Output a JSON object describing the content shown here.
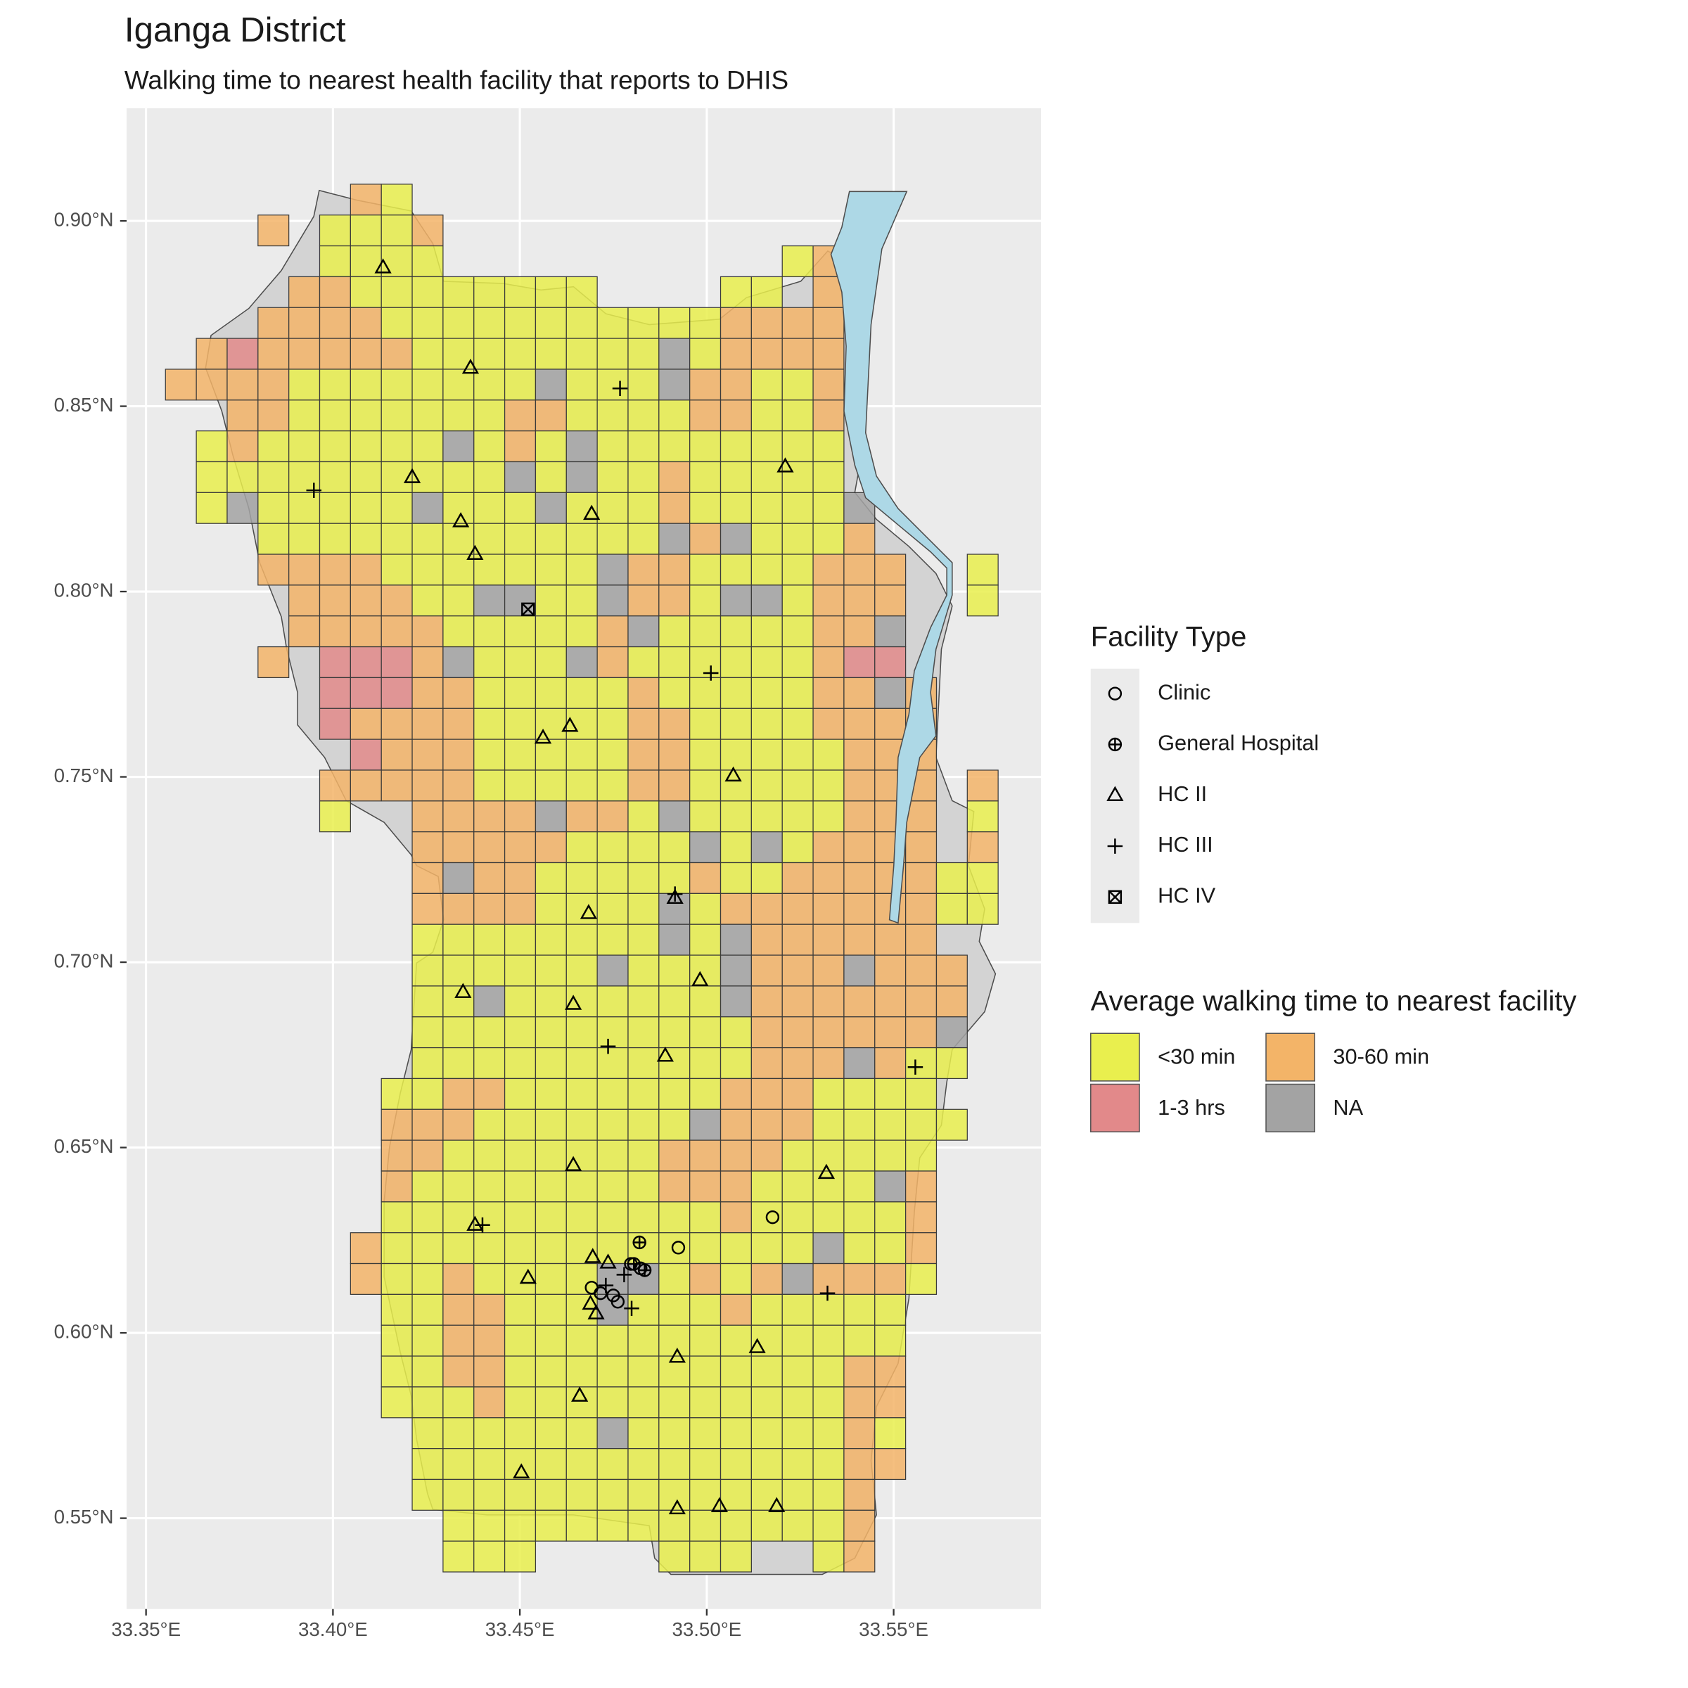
{
  "chart_data": {
    "type": "map",
    "title": "Iganga District",
    "subtitle": "Walking time to nearest health facility that reports to DHIS",
    "xlim": [
      33.3448,
      33.5894
    ],
    "ylim": [
      0.5255,
      0.9304
    ],
    "xticks": [
      {
        "value": 33.35,
        "label": "33.35°E"
      },
      {
        "value": 33.4,
        "label": "33.40°E"
      },
      {
        "value": 33.45,
        "label": "33.45°E"
      },
      {
        "value": 33.5,
        "label": "33.50°E"
      },
      {
        "value": 33.55,
        "label": "33.55°E"
      }
    ],
    "yticks": [
      {
        "value": 0.55,
        "label": "0.55°N"
      },
      {
        "value": 0.6,
        "label": "0.60°N"
      },
      {
        "value": 0.65,
        "label": "0.65°N"
      },
      {
        "value": 0.7,
        "label": "0.70°N"
      },
      {
        "value": 0.75,
        "label": "0.75°N"
      },
      {
        "value": 0.8,
        "label": "0.80°N"
      },
      {
        "value": 0.85,
        "label": "0.85°N"
      },
      {
        "value": 0.9,
        "label": "0.90°N"
      }
    ],
    "grid": true,
    "facility_legend_title": "Facility Type",
    "facilities": [
      {
        "name": "Clinic",
        "shape": "circle",
        "lon": [
          33.5176,
          33.4924,
          33.4692,
          33.4716,
          33.475,
          33.4762,
          33.4797,
          33.4823
        ],
        "lat": [
          0.6312,
          0.623,
          0.6122,
          0.6107,
          0.6101,
          0.6084,
          0.6186,
          0.6174
        ]
      },
      {
        "name": "General Hospital",
        "shape": "circle-plus",
        "lon": [
          33.482,
          33.4805,
          33.4834
        ],
        "lat": [
          0.6244,
          0.6186,
          0.6169
        ]
      },
      {
        "name": "HC II",
        "shape": "triangle",
        "lon": [
          33.4134,
          33.4368,
          33.4212,
          33.4342,
          33.438,
          33.4692,
          33.521,
          33.4634,
          33.4562,
          33.5071,
          33.4684,
          33.4915,
          33.4348,
          33.4643,
          33.4982,
          33.4889,
          33.4643,
          33.532,
          33.438,
          33.4522,
          33.4695,
          33.4736,
          33.4689,
          33.4704,
          33.4921,
          33.5135,
          33.466,
          33.4504,
          33.4921,
          33.5034,
          33.5187
        ],
        "lat": [
          0.8874,
          0.8603,
          0.8308,
          0.8189,
          0.8101,
          0.8209,
          0.8337,
          0.7637,
          0.7605,
          0.7503,
          0.7132,
          0.7173,
          0.6919,
          0.6887,
          0.6951,
          0.6747,
          0.6452,
          0.6431,
          0.6291,
          0.6148,
          0.6204,
          0.6189,
          0.6078,
          0.6052,
          0.5935,
          0.5961,
          0.583,
          0.5623,
          0.5526,
          0.5532,
          0.5532
        ]
      },
      {
        "name": "HC III",
        "shape": "plus",
        "lon": [
          33.4768,
          33.3949,
          33.5011,
          33.4915,
          33.4736,
          33.5558,
          33.44,
          33.5323,
          33.4799,
          33.4779,
          33.473
        ],
        "lat": [
          0.8548,
          0.8273,
          0.778,
          0.7184,
          0.6773,
          0.6717,
          0.6291,
          0.6107,
          0.6066,
          0.6157,
          0.6128
        ]
      },
      {
        "name": "HC IV",
        "shape": "square-x",
        "lon": [
          33.4522
        ],
        "lat": [
          0.7952
        ]
      }
    ],
    "walking_legend_title": "Average walking time to nearest facility",
    "classes": [
      {
        "name": "<30 min",
        "color": "#e9ef4e"
      },
      {
        "name": "30-60 min",
        "color": "#f3b468"
      },
      {
        "name": "1-3 hrs",
        "color": "#e2898a"
      },
      {
        "name": "NA",
        "color": "#a3a3a3"
      }
    ],
    "grid_origin": {
      "lon": 33.3552,
      "lat": 0.9099
    },
    "cell_size": {
      "lon": 0.00825,
      "lat": 0.00832
    },
    "cells": [
      [
        null,
        null,
        null,
        null,
        null,
        null,
        1,
        0,
        null,
        null,
        null,
        null,
        null,
        null,
        null,
        null,
        null,
        null,
        null,
        null,
        null,
        null,
        null,
        null,
        null,
        null,
        null
      ],
      [
        null,
        null,
        null,
        1,
        null,
        0,
        0,
        0,
        1,
        null,
        null,
        null,
        null,
        null,
        null,
        null,
        null,
        null,
        null,
        null,
        null,
        null,
        null,
        null,
        null,
        null,
        null
      ],
      [
        null,
        null,
        null,
        null,
        null,
        0,
        0,
        0,
        0,
        null,
        null,
        null,
        null,
        null,
        null,
        null,
        null,
        null,
        null,
        null,
        0,
        1,
        null,
        null,
        null,
        null,
        null
      ],
      [
        null,
        null,
        null,
        null,
        1,
        1,
        0,
        0,
        0,
        0,
        0,
        0,
        0,
        0,
        null,
        null,
        null,
        null,
        0,
        0,
        null,
        1,
        null,
        null,
        null,
        null,
        null
      ],
      [
        null,
        null,
        null,
        1,
        1,
        1,
        1,
        0,
        0,
        0,
        0,
        0,
        0,
        0,
        0,
        0,
        0,
        0,
        1,
        1,
        1,
        1,
        null,
        null,
        null,
        null,
        null
      ],
      [
        null,
        1,
        2,
        1,
        1,
        1,
        1,
        1,
        0,
        0,
        0,
        0,
        0,
        0,
        0,
        0,
        3,
        0,
        1,
        1,
        1,
        1,
        null,
        null,
        null,
        null,
        null
      ],
      [
        1,
        1,
        1,
        1,
        0,
        0,
        0,
        0,
        0,
        0,
        0,
        0,
        3,
        0,
        0,
        0,
        3,
        1,
        1,
        0,
        0,
        1,
        null,
        null,
        null,
        null,
        null
      ],
      [
        null,
        null,
        1,
        1,
        0,
        0,
        0,
        0,
        0,
        0,
        0,
        1,
        1,
        0,
        0,
        0,
        0,
        1,
        1,
        0,
        0,
        1,
        null,
        null,
        null,
        null,
        null
      ],
      [
        null,
        0,
        1,
        0,
        0,
        0,
        0,
        0,
        0,
        3,
        0,
        1,
        0,
        3,
        0,
        0,
        0,
        0,
        0,
        0,
        0,
        0,
        null,
        null,
        null,
        null,
        null
      ],
      [
        null,
        0,
        0,
        0,
        0,
        0,
        0,
        0,
        0,
        0,
        0,
        3,
        0,
        3,
        0,
        0,
        1,
        0,
        0,
        0,
        0,
        0,
        null,
        null,
        null,
        null,
        null
      ],
      [
        null,
        0,
        3,
        0,
        0,
        0,
        0,
        0,
        3,
        0,
        0,
        0,
        3,
        0,
        0,
        0,
        1,
        0,
        0,
        0,
        0,
        0,
        3,
        null,
        null,
        null,
        null
      ],
      [
        null,
        null,
        null,
        0,
        0,
        0,
        0,
        0,
        0,
        0,
        0,
        0,
        0,
        0,
        0,
        0,
        3,
        1,
        3,
        0,
        0,
        0,
        1,
        null,
        null,
        null,
        null
      ],
      [
        null,
        null,
        null,
        1,
        1,
        1,
        1,
        0,
        0,
        0,
        0,
        0,
        0,
        0,
        3,
        1,
        1,
        0,
        0,
        0,
        0,
        1,
        1,
        1,
        null,
        null,
        0
      ],
      [
        null,
        null,
        null,
        null,
        1,
        1,
        1,
        1,
        0,
        0,
        3,
        3,
        0,
        0,
        3,
        1,
        1,
        0,
        3,
        3,
        0,
        1,
        1,
        1,
        null,
        null,
        0
      ],
      [
        null,
        null,
        null,
        null,
        1,
        1,
        1,
        1,
        1,
        0,
        0,
        0,
        0,
        0,
        1,
        3,
        0,
        0,
        0,
        0,
        0,
        1,
        1,
        3,
        null,
        null,
        null
      ],
      [
        null,
        null,
        null,
        1,
        null,
        2,
        2,
        2,
        1,
        3,
        0,
        0,
        0,
        3,
        1,
        0,
        0,
        0,
        0,
        0,
        0,
        1,
        2,
        2,
        null,
        null,
        null
      ],
      [
        null,
        null,
        null,
        null,
        null,
        2,
        2,
        2,
        1,
        1,
        0,
        0,
        0,
        0,
        0,
        1,
        0,
        0,
        0,
        0,
        0,
        1,
        1,
        3,
        1,
        null,
        null
      ],
      [
        null,
        null,
        null,
        null,
        null,
        2,
        1,
        1,
        1,
        1,
        0,
        0,
        0,
        0,
        0,
        1,
        1,
        0,
        0,
        0,
        0,
        1,
        1,
        1,
        1,
        null,
        null
      ],
      [
        null,
        null,
        null,
        null,
        null,
        null,
        2,
        1,
        1,
        1,
        0,
        0,
        0,
        0,
        0,
        1,
        1,
        0,
        0,
        0,
        0,
        0,
        1,
        1,
        1,
        null,
        null
      ],
      [
        null,
        null,
        null,
        null,
        null,
        1,
        1,
        1,
        1,
        1,
        0,
        0,
        0,
        0,
        0,
        1,
        1,
        0,
        0,
        0,
        0,
        0,
        1,
        1,
        1,
        null,
        1
      ],
      [
        null,
        null,
        null,
        null,
        null,
        0,
        null,
        null,
        1,
        1,
        1,
        1,
        3,
        1,
        1,
        0,
        3,
        0,
        0,
        0,
        0,
        0,
        1,
        1,
        1,
        null,
        0
      ],
      [
        null,
        null,
        null,
        null,
        null,
        null,
        null,
        null,
        1,
        1,
        1,
        1,
        1,
        0,
        0,
        0,
        0,
        3,
        0,
        3,
        0,
        1,
        1,
        1,
        1,
        null,
        1
      ],
      [
        null,
        null,
        null,
        null,
        null,
        null,
        null,
        null,
        1,
        3,
        1,
        1,
        0,
        0,
        0,
        0,
        0,
        1,
        0,
        0,
        1,
        1,
        1,
        1,
        1,
        0,
        0
      ],
      [
        null,
        null,
        null,
        null,
        null,
        null,
        null,
        null,
        1,
        1,
        1,
        1,
        0,
        0,
        0,
        0,
        3,
        0,
        1,
        1,
        1,
        1,
        1,
        1,
        1,
        0,
        0
      ],
      [
        null,
        null,
        null,
        null,
        null,
        null,
        null,
        null,
        0,
        0,
        0,
        0,
        0,
        0,
        0,
        0,
        3,
        0,
        3,
        1,
        1,
        1,
        1,
        1,
        1,
        null,
        null
      ],
      [
        null,
        null,
        null,
        null,
        null,
        null,
        null,
        null,
        0,
        0,
        0,
        0,
        0,
        0,
        3,
        0,
        0,
        0,
        3,
        1,
        1,
        1,
        3,
        1,
        1,
        1,
        null
      ],
      [
        null,
        null,
        null,
        null,
        null,
        null,
        null,
        null,
        0,
        0,
        3,
        0,
        0,
        0,
        0,
        0,
        0,
        0,
        3,
        1,
        1,
        1,
        1,
        1,
        1,
        1,
        null
      ],
      [
        null,
        null,
        null,
        null,
        null,
        null,
        null,
        null,
        0,
        0,
        0,
        0,
        0,
        0,
        0,
        0,
        0,
        0,
        0,
        1,
        1,
        1,
        1,
        1,
        1,
        3,
        null
      ],
      [
        null,
        null,
        null,
        null,
        null,
        null,
        null,
        null,
        0,
        0,
        0,
        0,
        0,
        0,
        0,
        0,
        0,
        0,
        0,
        1,
        1,
        1,
        3,
        1,
        0,
        0,
        null
      ],
      [
        null,
        null,
        null,
        null,
        null,
        null,
        null,
        0,
        0,
        1,
        1,
        0,
        0,
        0,
        0,
        0,
        0,
        0,
        1,
        1,
        1,
        0,
        0,
        0,
        0,
        null,
        null
      ],
      [
        null,
        null,
        null,
        null,
        null,
        null,
        null,
        1,
        1,
        1,
        0,
        0,
        0,
        0,
        0,
        0,
        0,
        3,
        1,
        1,
        1,
        0,
        0,
        0,
        0,
        0,
        null
      ],
      [
        null,
        null,
        null,
        null,
        null,
        null,
        null,
        1,
        1,
        0,
        0,
        0,
        0,
        0,
        0,
        0,
        1,
        1,
        1,
        1,
        0,
        0,
        0,
        0,
        0,
        null,
        null
      ],
      [
        null,
        null,
        null,
        null,
        null,
        null,
        null,
        1,
        0,
        0,
        0,
        0,
        0,
        0,
        0,
        0,
        1,
        1,
        1,
        0,
        0,
        0,
        0,
        3,
        1,
        null,
        null
      ],
      [
        null,
        null,
        null,
        null,
        null,
        null,
        null,
        0,
        0,
        0,
        0,
        0,
        0,
        0,
        0,
        0,
        0,
        0,
        1,
        0,
        0,
        0,
        0,
        0,
        1,
        null,
        null
      ],
      [
        null,
        null,
        null,
        null,
        null,
        null,
        1,
        0,
        0,
        0,
        0,
        0,
        0,
        0,
        0,
        0,
        0,
        0,
        0,
        0,
        0,
        3,
        0,
        0,
        1,
        null,
        null
      ],
      [
        null,
        null,
        null,
        null,
        null,
        null,
        1,
        0,
        0,
        1,
        0,
        0,
        0,
        0,
        3,
        3,
        0,
        1,
        0,
        1,
        3,
        1,
        1,
        1,
        0,
        null,
        null
      ],
      [
        null,
        null,
        null,
        null,
        null,
        null,
        null,
        0,
        0,
        1,
        1,
        0,
        0,
        0,
        3,
        0,
        0,
        0,
        1,
        0,
        0,
        0,
        0,
        0,
        null,
        null,
        null
      ],
      [
        null,
        null,
        null,
        null,
        null,
        null,
        null,
        0,
        0,
        1,
        1,
        0,
        0,
        0,
        0,
        0,
        0,
        0,
        0,
        0,
        0,
        0,
        0,
        0,
        null,
        null,
        null
      ],
      [
        null,
        null,
        null,
        null,
        null,
        null,
        null,
        0,
        0,
        1,
        1,
        0,
        0,
        0,
        0,
        0,
        0,
        0,
        0,
        0,
        0,
        0,
        1,
        1,
        null,
        null,
        null
      ],
      [
        null,
        null,
        null,
        null,
        null,
        null,
        null,
        0,
        0,
        0,
        1,
        0,
        0,
        0,
        0,
        0,
        0,
        0,
        0,
        0,
        0,
        0,
        1,
        1,
        null,
        null,
        null
      ],
      [
        null,
        null,
        null,
        null,
        null,
        null,
        null,
        null,
        0,
        0,
        0,
        0,
        0,
        0,
        3,
        0,
        0,
        0,
        0,
        0,
        0,
        0,
        1,
        0,
        null,
        null,
        null
      ],
      [
        null,
        null,
        null,
        null,
        null,
        null,
        null,
        null,
        0,
        0,
        0,
        0,
        0,
        0,
        0,
        0,
        0,
        0,
        0,
        0,
        0,
        0,
        1,
        1,
        null,
        null,
        null
      ],
      [
        null,
        null,
        null,
        null,
        null,
        null,
        null,
        null,
        0,
        0,
        0,
        0,
        0,
        0,
        0,
        0,
        0,
        0,
        0,
        0,
        0,
        0,
        1,
        null,
        null,
        null,
        null
      ],
      [
        null,
        null,
        null,
        null,
        null,
        null,
        null,
        null,
        null,
        0,
        0,
        0,
        0,
        0,
        0,
        0,
        0,
        0,
        0,
        0,
        0,
        0,
        1,
        null,
        null,
        null,
        null
      ],
      [
        null,
        null,
        null,
        null,
        null,
        null,
        null,
        null,
        null,
        0,
        0,
        0,
        null,
        null,
        null,
        null,
        0,
        0,
        0,
        null,
        null,
        0,
        1,
        null,
        null,
        null,
        null
      ]
    ]
  }
}
